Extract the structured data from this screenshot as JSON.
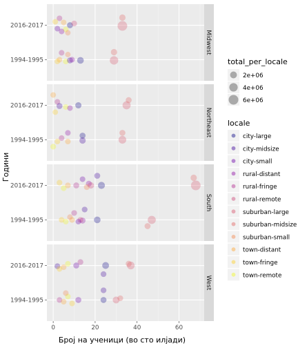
{
  "chart_data": {
    "type": "scatter",
    "xlabel": "Број на ученици (во сто илјади)",
    "ylabel": "Години",
    "xlim": [
      -3,
      72
    ],
    "x_ticks": [
      0,
      20,
      40,
      60
    ],
    "y_categories": [
      "1994-1995",
      "2016-2017"
    ],
    "facet_by": "region",
    "facets": [
      "Midwest",
      "Northeast",
      "South",
      "West"
    ],
    "grid": true,
    "size_legend": {
      "title": "total_per_locale",
      "entries": [
        {
          "label": "2e+06",
          "value": 2000000
        },
        {
          "label": "4e+06",
          "value": 4000000
        },
        {
          "label": "6e+06",
          "value": 6000000
        }
      ]
    },
    "color_legend": {
      "title": "locale",
      "entries": [
        {
          "label": "city-large",
          "color": "#0d0887"
        },
        {
          "label": "city-midsize",
          "color": "#3e049c"
        },
        {
          "label": "city-small",
          "color": "#6a00a8"
        },
        {
          "label": "rural-distant",
          "color": "#8f0da4"
        },
        {
          "label": "rural-fringe",
          "color": "#b12a90"
        },
        {
          "label": "rural-remote",
          "color": "#cc4778"
        },
        {
          "label": "suburban-large",
          "color": "#d6556d"
        },
        {
          "label": "suburban-midsize",
          "color": "#e16462"
        },
        {
          "label": "suburban-small",
          "color": "#f2844b"
        },
        {
          "label": "town-distant",
          "color": "#fca636"
        },
        {
          "label": "town-fringe",
          "color": "#fcce25"
        },
        {
          "label": "town-remote",
          "color": "#f0f921"
        }
      ]
    },
    "panels": [
      {
        "region": "Midwest",
        "points": [
          {
            "x": 33,
            "y": "2016-2017",
            "offset": -0.22,
            "size": 1500000,
            "locale": "suburban-midsize"
          },
          {
            "x": 33,
            "y": "2016-2017",
            "offset": 0.02,
            "size": 6000000,
            "locale": "suburban-large"
          },
          {
            "x": 3,
            "y": "2016-2017",
            "offset": -0.2,
            "size": 900000,
            "locale": "rural-fringe"
          },
          {
            "x": 5,
            "y": "2016-2017",
            "offset": -0.08,
            "size": 900000,
            "locale": "town-distant"
          },
          {
            "x": 2,
            "y": "2016-2017",
            "offset": 0.1,
            "size": 900000,
            "locale": "city-small"
          },
          {
            "x": 6,
            "y": "2016-2017",
            "offset": 0.12,
            "size": 900000,
            "locale": "town-remote"
          },
          {
            "x": 8,
            "y": "2016-2017",
            "offset": 0.0,
            "size": 1200000,
            "locale": "city-large"
          },
          {
            "x": 4,
            "y": "2016-2017",
            "offset": 0.18,
            "size": 900000,
            "locale": "rural-distant"
          },
          {
            "x": 10,
            "y": "2016-2017",
            "offset": -0.05,
            "size": 1000000,
            "locale": "rural-remote"
          },
          {
            "x": 1,
            "y": "2016-2017",
            "offset": -0.1,
            "size": 900000,
            "locale": "town-fringe"
          },
          {
            "x": 7,
            "y": "2016-2017",
            "offset": 0.22,
            "size": 800000,
            "locale": "suburban-small"
          },
          {
            "x": 29,
            "y": "1994-1995",
            "offset": -0.22,
            "size": 1500000,
            "locale": "suburban-midsize"
          },
          {
            "x": 29,
            "y": "1994-1995",
            "offset": 0.02,
            "size": 4000000,
            "locale": "suburban-large"
          },
          {
            "x": 4,
            "y": "1994-1995",
            "offset": -0.2,
            "size": 900000,
            "locale": "rural-fringe"
          },
          {
            "x": 3,
            "y": "1994-1995",
            "offset": 0.0,
            "size": 900000,
            "locale": "town-distant"
          },
          {
            "x": 6,
            "y": "1994-1995",
            "offset": 0.05,
            "size": 1000000,
            "locale": "town-remote"
          },
          {
            "x": 13,
            "y": "1994-1995",
            "offset": 0.02,
            "size": 1800000,
            "locale": "city-large"
          },
          {
            "x": 8,
            "y": "1994-1995",
            "offset": 0.02,
            "size": 1200000,
            "locale": "city-midsize"
          },
          {
            "x": 9,
            "y": "1994-1995",
            "offset": 0.0,
            "size": 900000,
            "locale": "rural-distant"
          },
          {
            "x": 2,
            "y": "1994-1995",
            "offset": 0.05,
            "size": 900000,
            "locale": "town-fringe"
          },
          {
            "x": 7,
            "y": "1994-1995",
            "offset": -0.15,
            "size": 800000,
            "locale": "suburban-small"
          }
        ]
      },
      {
        "region": "Northeast",
        "points": [
          {
            "x": 35,
            "y": "2016-2017",
            "offset": 0.0,
            "size": 3500000,
            "locale": "suburban-large"
          },
          {
            "x": 36,
            "y": "2016-2017",
            "offset": -0.15,
            "size": 1200000,
            "locale": "suburban-midsize"
          },
          {
            "x": 0,
            "y": "2016-2017",
            "offset": -0.3,
            "size": 900000,
            "locale": "town-distant"
          },
          {
            "x": 2,
            "y": "2016-2017",
            "offset": -0.1,
            "size": 900000,
            "locale": "rural-fringe"
          },
          {
            "x": 3,
            "y": "2016-2017",
            "offset": 0.02,
            "size": 1200000,
            "locale": "city-midsize"
          },
          {
            "x": 6,
            "y": "2016-2017",
            "offset": 0.05,
            "size": 900000,
            "locale": "town-remote"
          },
          {
            "x": 12,
            "y": "2016-2017",
            "offset": 0.0,
            "size": 1400000,
            "locale": "city-large"
          },
          {
            "x": 8,
            "y": "2016-2017",
            "offset": 0.08,
            "size": 900000,
            "locale": "rural-distant"
          },
          {
            "x": 1,
            "y": "2016-2017",
            "offset": 0.2,
            "size": 800000,
            "locale": "town-fringe"
          },
          {
            "x": 33,
            "y": "1994-1995",
            "offset": 0.0,
            "size": 3000000,
            "locale": "suburban-large"
          },
          {
            "x": 33,
            "y": "1994-1995",
            "offset": -0.2,
            "size": 1200000,
            "locale": "suburban-midsize"
          },
          {
            "x": 14,
            "y": "1994-1995",
            "offset": -0.12,
            "size": 1200000,
            "locale": "city-large"
          },
          {
            "x": 14,
            "y": "1994-1995",
            "offset": 0.02,
            "size": 1500000,
            "locale": "city-midsize"
          },
          {
            "x": 0,
            "y": "1994-1995",
            "offset": 0.2,
            "size": 1000000,
            "locale": "town-remote"
          },
          {
            "x": 2,
            "y": "1994-1995",
            "offset": 0.05,
            "size": 900000,
            "locale": "town-fringe"
          },
          {
            "x": 4,
            "y": "1994-1995",
            "offset": -0.05,
            "size": 900000,
            "locale": "rural-fringe"
          },
          {
            "x": 7,
            "y": "1994-1995",
            "offset": -0.2,
            "size": 900000,
            "locale": "rural-distant"
          },
          {
            "x": 7,
            "y": "1994-1995",
            "offset": 0.05,
            "size": 900000,
            "locale": "town-distant"
          }
        ]
      },
      {
        "region": "South",
        "points": [
          {
            "x": 68,
            "y": "2016-2017",
            "offset": 0.0,
            "size": 6000000,
            "locale": "suburban-large"
          },
          {
            "x": 67,
            "y": "2016-2017",
            "offset": -0.22,
            "size": 1500000,
            "locale": "suburban-midsize"
          },
          {
            "x": 23,
            "y": "2016-2017",
            "offset": 0.0,
            "size": 2200000,
            "locale": "city-large"
          },
          {
            "x": 21,
            "y": "2016-2017",
            "offset": -0.28,
            "size": 1200000,
            "locale": "city-midsize"
          },
          {
            "x": 17,
            "y": "2016-2017",
            "offset": -0.05,
            "size": 1100000,
            "locale": "rural-distant"
          },
          {
            "x": 18,
            "y": "2016-2017",
            "offset": 0.0,
            "size": 1500000,
            "locale": "rural-remote"
          },
          {
            "x": 16,
            "y": "2016-2017",
            "offset": 0.05,
            "size": 1000000,
            "locale": "suburban-small"
          },
          {
            "x": 11,
            "y": "2016-2017",
            "offset": 0.0,
            "size": 1200000,
            "locale": "rural-fringe"
          },
          {
            "x": 7,
            "y": "2016-2017",
            "offset": 0.0,
            "size": 1000000,
            "locale": "town-distant"
          },
          {
            "x": 3,
            "y": "2016-2017",
            "offset": -0.08,
            "size": 1000000,
            "locale": "town-fringe"
          },
          {
            "x": 5,
            "y": "2016-2017",
            "offset": 0.08,
            "size": 1000000,
            "locale": "town-remote"
          },
          {
            "x": 14,
            "y": "2016-2017",
            "offset": -0.18,
            "size": 900000,
            "locale": "city-small"
          },
          {
            "x": 47,
            "y": "1994-1995",
            "offset": 0.0,
            "size": 3500000,
            "locale": "suburban-large"
          },
          {
            "x": 45,
            "y": "1994-1995",
            "offset": 0.18,
            "size": 1200000,
            "locale": "suburban-midsize"
          },
          {
            "x": 21,
            "y": "1994-1995",
            "offset": 0.0,
            "size": 1800000,
            "locale": "city-large"
          },
          {
            "x": 15,
            "y": "1994-1995",
            "offset": -0.3,
            "size": 1000000,
            "locale": "city-midsize"
          },
          {
            "x": 14,
            "y": "1994-1995",
            "offset": 0.02,
            "size": 1200000,
            "locale": "rural-distant"
          },
          {
            "x": 13,
            "y": "1994-1995",
            "offset": 0.0,
            "size": 1000000,
            "locale": "rural-remote"
          },
          {
            "x": 10,
            "y": "1994-1995",
            "offset": -0.2,
            "size": 1000000,
            "locale": "rural-fringe"
          },
          {
            "x": 9,
            "y": "1994-1995",
            "offset": 0.0,
            "size": 1000000,
            "locale": "town-distant"
          },
          {
            "x": 4,
            "y": "1994-1995",
            "offset": 0.0,
            "size": 900000,
            "locale": "town-fringe"
          },
          {
            "x": 6,
            "y": "1994-1995",
            "offset": 0.05,
            "size": 900000,
            "locale": "town-remote"
          },
          {
            "x": 8,
            "y": "1994-1995",
            "offset": -0.08,
            "size": 900000,
            "locale": "suburban-small"
          },
          {
            "x": 12,
            "y": "1994-1995",
            "offset": 0.05,
            "size": 900000,
            "locale": "city-small"
          }
        ]
      },
      {
        "region": "West",
        "points": [
          {
            "x": 37,
            "y": "2016-2017",
            "offset": 0.0,
            "size": 3000000,
            "locale": "suburban-large"
          },
          {
            "x": 36,
            "y": "2016-2017",
            "offset": -0.05,
            "size": 1200000,
            "locale": "suburban-midsize"
          },
          {
            "x": 25,
            "y": "2016-2017",
            "offset": 0.0,
            "size": 2000000,
            "locale": "city-large"
          },
          {
            "x": 24,
            "y": "2016-2017",
            "offset": 0.25,
            "size": 1000000,
            "locale": "city-midsize"
          },
          {
            "x": 11,
            "y": "2016-2017",
            "offset": 0.0,
            "size": 1200000,
            "locale": "city-small"
          },
          {
            "x": 13,
            "y": "2016-2017",
            "offset": -0.1,
            "size": 1000000,
            "locale": "rural-fringe"
          },
          {
            "x": 2,
            "y": "2016-2017",
            "offset": 0.02,
            "size": 1000000,
            "locale": "city-midsize"
          },
          {
            "x": 5,
            "y": "2016-2017",
            "offset": 0.05,
            "size": 900000,
            "locale": "town-distant"
          },
          {
            "x": 7,
            "y": "2016-2017",
            "offset": -0.05,
            "size": 900000,
            "locale": "town-remote"
          },
          {
            "x": 3,
            "y": "2016-2017",
            "offset": 0.1,
            "size": 900000,
            "locale": "town-fringe"
          },
          {
            "x": 30,
            "y": "1994-1995",
            "offset": 0.0,
            "size": 2000000,
            "locale": "suburban-large"
          },
          {
            "x": 32,
            "y": "1994-1995",
            "offset": -0.05,
            "size": 1000000,
            "locale": "suburban-midsize"
          },
          {
            "x": 24,
            "y": "1994-1995",
            "offset": -0.28,
            "size": 1000000,
            "locale": "city-midsize"
          },
          {
            "x": 24,
            "y": "1994-1995",
            "offset": 0.0,
            "size": 1200000,
            "locale": "city-large"
          },
          {
            "x": 12,
            "y": "1994-1995",
            "offset": 0.0,
            "size": 1200000,
            "locale": "city-small"
          },
          {
            "x": 3,
            "y": "1994-1995",
            "offset": 0.0,
            "size": 900000,
            "locale": "rural-fringe"
          },
          {
            "x": 5,
            "y": "1994-1995",
            "offset": 0.05,
            "size": 900000,
            "locale": "town-distant"
          },
          {
            "x": 7,
            "y": "1994-1995",
            "offset": -0.1,
            "size": 900000,
            "locale": "town-remote"
          },
          {
            "x": 9,
            "y": "1994-1995",
            "offset": 0.1,
            "size": 900000,
            "locale": "town-fringe"
          },
          {
            "x": 6,
            "y": "1994-1995",
            "offset": -0.2,
            "size": 900000,
            "locale": "suburban-small"
          }
        ]
      }
    ]
  }
}
